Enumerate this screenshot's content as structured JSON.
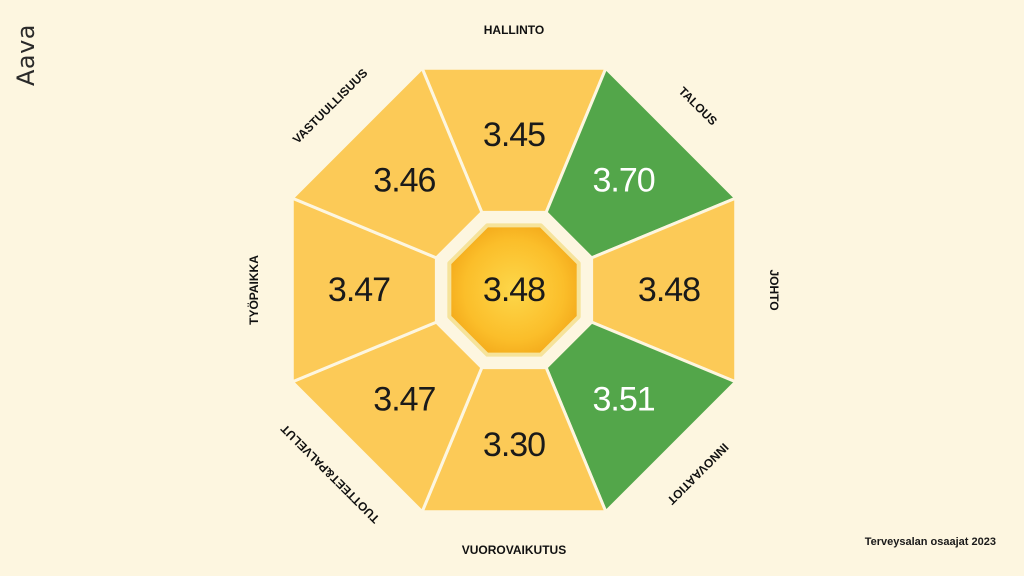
{
  "brand": "Aava",
  "footer": "Terveysalan osaajat 2023",
  "colors": {
    "yellow": "#fcca57",
    "green": "#53a64a",
    "center": "#fbbf2e",
    "background": "#fdf6e0"
  },
  "center": {
    "value": "3.48"
  },
  "segments": [
    {
      "label": "HALLINTO",
      "value": "3.45",
      "color": "yellow"
    },
    {
      "label": "TALOUS",
      "value": "3.70",
      "color": "green"
    },
    {
      "label": "JOHTO",
      "value": "3.48",
      "color": "yellow"
    },
    {
      "label": "INNOVAATIOT",
      "value": "3.51",
      "color": "green"
    },
    {
      "label": "VUOROVAIKUTUS",
      "value": "3.30",
      "color": "yellow"
    },
    {
      "label": "TUOTTEET&PALVELUT",
      "value": "3.47",
      "color": "yellow"
    },
    {
      "label": "TYÖPAIKKA",
      "value": "3.47",
      "color": "yellow"
    },
    {
      "label": "VASTUULLISUUS",
      "value": "3.46",
      "color": "yellow"
    }
  ]
}
